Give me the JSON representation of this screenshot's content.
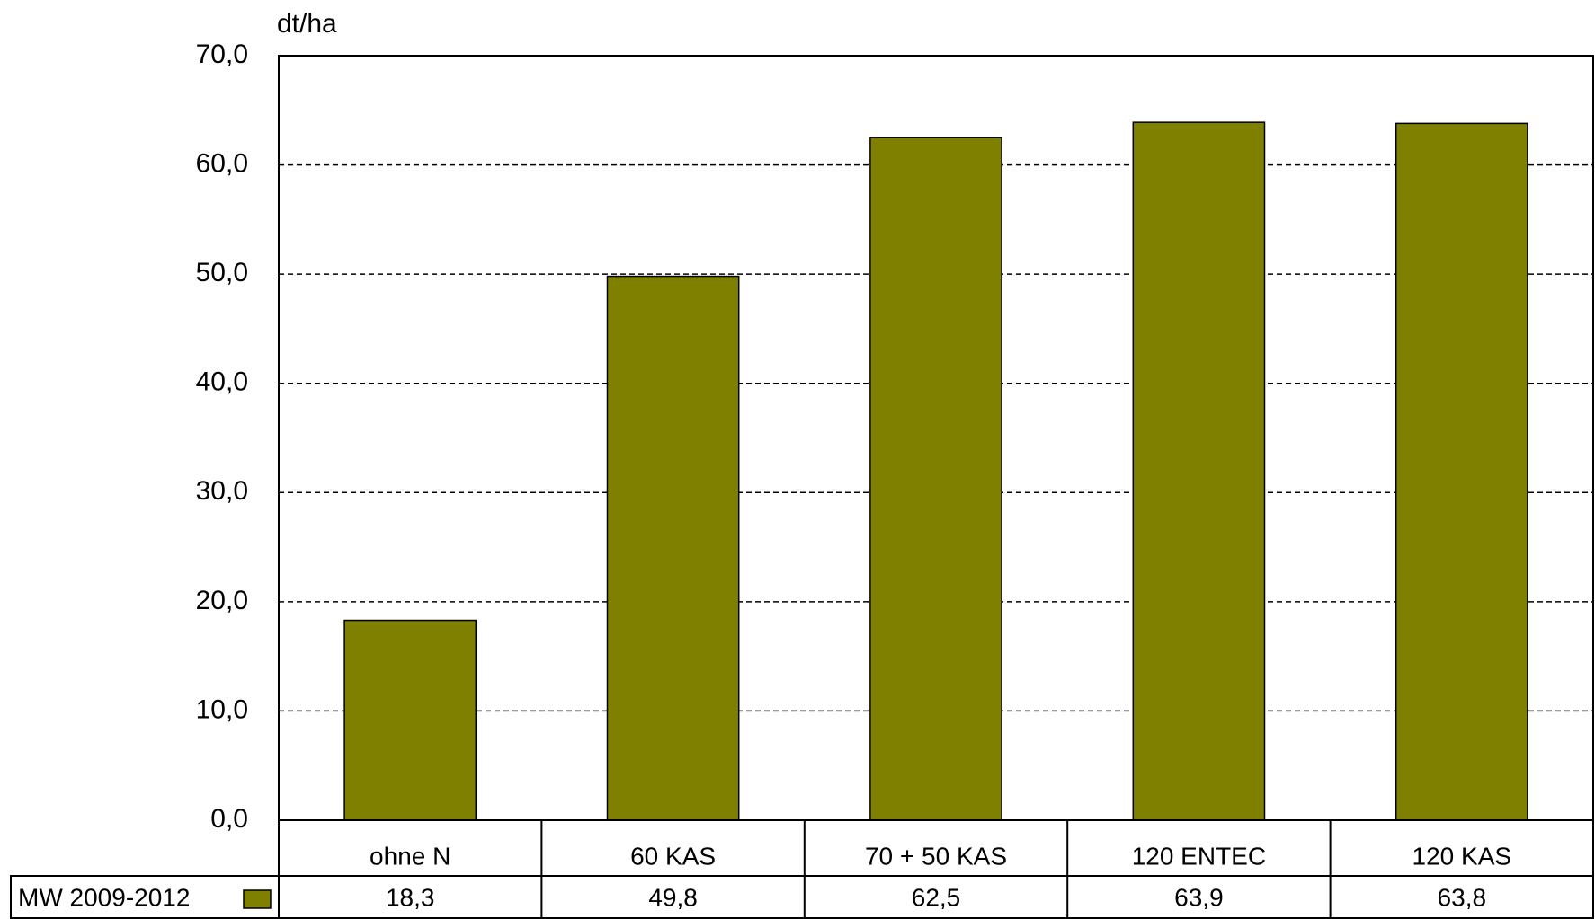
{
  "chart_data": {
    "type": "bar",
    "y_label": "dt/ha",
    "categories": [
      "ohne N",
      "60 KAS",
      "70 + 50 KAS",
      "120 ENTEC",
      "120 KAS"
    ],
    "series": [
      {
        "name": "MW 2009-2012",
        "color": "#808000",
        "values": [
          18.3,
          49.8,
          62.5,
          63.9,
          63.8
        ],
        "value_labels": [
          "18,3",
          "49,8",
          "62,5",
          "63,9",
          "63,8"
        ]
      }
    ],
    "ylim": [
      0,
      70
    ],
    "yticks": [
      {
        "value": 0,
        "label": "0,0"
      },
      {
        "value": 10,
        "label": "10,0"
      },
      {
        "value": 20,
        "label": "20,0"
      },
      {
        "value": 30,
        "label": "30,0"
      },
      {
        "value": 40,
        "label": "40,0"
      },
      {
        "value": 50,
        "label": "50,0"
      },
      {
        "value": 60,
        "label": "60,0"
      },
      {
        "value": 70,
        "label": "70,0"
      }
    ],
    "grid": true
  }
}
